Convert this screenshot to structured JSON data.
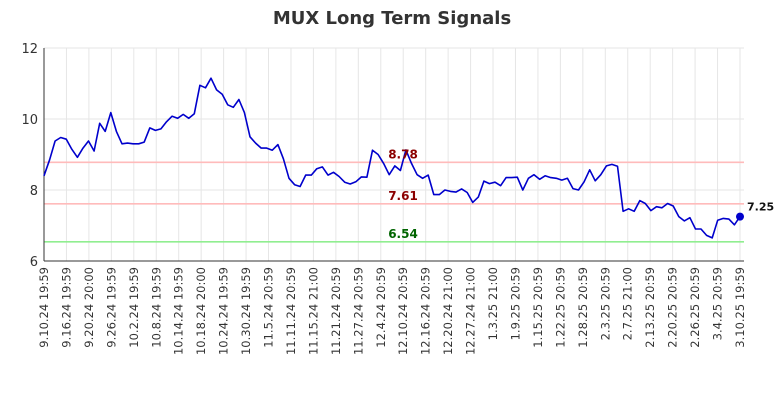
{
  "chart_data": {
    "type": "line",
    "title": "MUX Long Term Signals",
    "ylim": [
      6,
      12
    ],
    "y_ticks": [
      "6",
      "8",
      "10",
      "12"
    ],
    "x_tick_labels": [
      "9.10.24 19:59",
      "9.16.24 19:59",
      "9.20.24 20:00",
      "9.26.24 19:59",
      "10.2.24 19:59",
      "10.8.24 19:59",
      "10.14.24 19:59",
      "10.18.24 20:00",
      "10.24.24 19:59",
      "10.30.24 19:59",
      "11.5.24 20:59",
      "11.11.24 20:59",
      "11.15.24 21:00",
      "11.21.24 20:59",
      "11.27.24 20:59",
      "12.4.24 20:59",
      "12.10.24 20:59",
      "12.16.24 20:59",
      "12.20.24 21:00",
      "12.27.24 21:00",
      "1.3.25 21:00",
      "1.9.25 20:59",
      "1.15.25 20:59",
      "1.22.25 20:59",
      "1.28.25 20:59",
      "2.3.25 20:59",
      "2.7.25 21:00",
      "2.13.25 20:59",
      "2.20.25 20:59",
      "2.26.25 20:59",
      "3.4.25 20:59",
      "3.10.25 19:59"
    ],
    "grid": true,
    "series": [
      {
        "color": "#0000cc",
        "values": [
          8.4,
          8.85,
          9.38,
          9.48,
          9.43,
          9.15,
          8.92,
          9.18,
          9.38,
          9.1,
          9.88,
          9.65,
          10.18,
          9.65,
          9.3,
          9.32,
          9.3,
          9.3,
          9.35,
          9.75,
          9.68,
          9.72,
          9.92,
          10.08,
          10.02,
          10.13,
          10.02,
          10.15,
          10.95,
          10.88,
          11.15,
          10.82,
          10.7,
          10.4,
          10.33,
          10.55,
          10.18,
          9.5,
          9.32,
          9.18,
          9.18,
          9.12,
          9.28,
          8.88,
          8.33,
          8.15,
          8.1,
          8.42,
          8.42,
          8.6,
          8.65,
          8.42,
          8.5,
          8.38,
          8.22,
          8.17,
          8.23,
          8.37,
          8.36,
          9.12,
          9.0,
          8.75,
          8.43,
          8.68,
          8.55,
          9.13,
          8.75,
          8.43,
          8.33,
          8.42,
          7.87,
          7.87,
          8.0,
          7.96,
          7.94,
          8.03,
          7.93,
          7.65,
          7.8,
          8.25,
          8.18,
          8.22,
          8.12,
          8.35,
          8.35,
          8.36,
          8.0,
          8.33,
          8.43,
          8.3,
          8.4,
          8.35,
          8.33,
          8.28,
          8.33,
          8.04,
          8.0,
          8.23,
          8.57,
          8.26,
          8.43,
          8.68,
          8.72,
          8.67,
          7.4,
          7.47,
          7.4,
          7.7,
          7.62,
          7.42,
          7.53,
          7.5,
          7.62,
          7.55,
          7.25,
          7.13,
          7.22,
          6.9,
          6.9,
          6.72,
          6.65,
          7.15,
          7.2,
          7.18,
          7.02,
          7.25
        ]
      }
    ],
    "reference_lines": [
      {
        "value": 8.78,
        "label": "8.78",
        "line_color": "#ffbbbb",
        "label_color": "#8b0000"
      },
      {
        "value": 7.61,
        "label": "7.61",
        "line_color": "#ffbbbb",
        "label_color": "#8b0000"
      },
      {
        "value": 6.54,
        "label": "6.54",
        "line_color": "#90ee90",
        "label_color": "#006400"
      }
    ],
    "last_value_label": "7.25"
  }
}
